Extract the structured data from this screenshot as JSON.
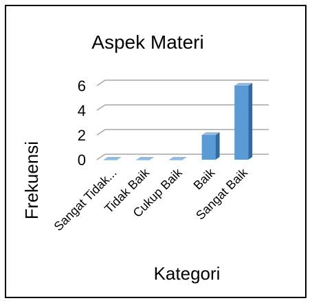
{
  "chart_data": {
    "type": "bar",
    "style": "3d-column",
    "title": "Aspek Materi",
    "xlabel": "Kategori",
    "ylabel": "Frekuensi",
    "categories": [
      "Sangat Tidak...",
      "Tidak Baik",
      "Cukup Baik",
      "Baik",
      "Sangat Baik"
    ],
    "values": [
      0,
      0,
      0,
      2,
      6
    ],
    "yticks": [
      0,
      2,
      4,
      6
    ],
    "ylim": [
      0,
      6
    ],
    "grid": true,
    "legend": "none",
    "colors": {
      "front": "#5b9bd5",
      "side": "#2e6aa6",
      "top": "#8fbbe6",
      "grid": "#a6a6a6"
    }
  }
}
